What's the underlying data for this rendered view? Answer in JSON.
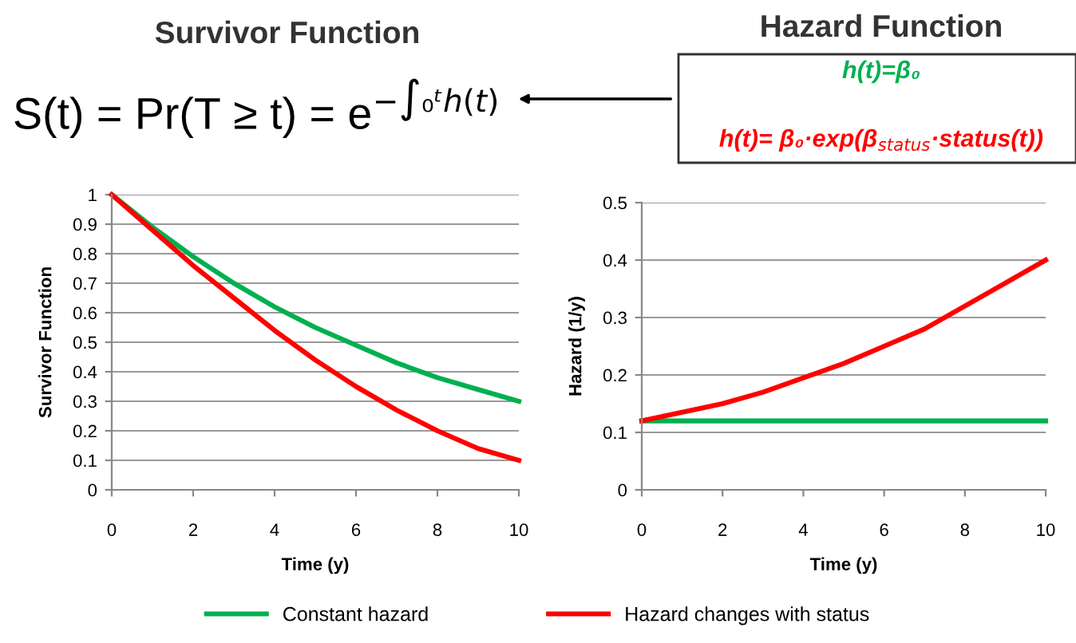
{
  "chart_data": [
    {
      "type": "line",
      "title": "Survivor Function",
      "xlabel": "Time (y)",
      "ylabel": "Survivor Function",
      "x": [
        0,
        1,
        2,
        3,
        4,
        5,
        6,
        7,
        8,
        9,
        10
      ],
      "series": [
        {
          "name": "Constant hazard",
          "color": "#00b050",
          "values": [
            1,
            0.89,
            0.79,
            0.7,
            0.62,
            0.55,
            0.49,
            0.43,
            0.38,
            0.34,
            0.3
          ]
        },
        {
          "name": "Hazard changes with status",
          "color": "#ff0000",
          "values": [
            1,
            0.88,
            0.76,
            0.65,
            0.54,
            0.44,
            0.35,
            0.27,
            0.2,
            0.14,
            0.1
          ]
        }
      ],
      "xlim": [
        0,
        10
      ],
      "xticks": [
        0,
        2,
        4,
        6,
        8,
        10
      ],
      "ylim": [
        0,
        1
      ],
      "yticks": [
        0,
        0.1,
        0.2,
        0.3,
        0.4,
        0.5,
        0.6,
        0.7,
        0.8,
        0.9,
        1
      ],
      "grid": "y",
      "legend": "bottom",
      "marker": "none",
      "line_style": "solid",
      "annotations": [
        "S(t) = Pr(T ≥ t) = e$^{−∫₀ᵗh(t)}$"
      ]
    },
    {
      "type": "line",
      "title": "Hazard Function",
      "xlabel": "Time (y)",
      "ylabel": "Hazard (1/y)",
      "x": [
        0,
        1,
        2,
        3,
        4,
        5,
        6,
        7,
        8,
        9,
        10
      ],
      "series": [
        {
          "name": "Constant hazard",
          "color": "#00b050",
          "values": [
            0.12,
            0.12,
            0.12,
            0.12,
            0.12,
            0.12,
            0.12,
            0.12,
            0.12,
            0.12,
            0.12
          ]
        },
        {
          "name": "Hazard changes with status",
          "color": "#ff0000",
          "values": [
            0.12,
            0.135,
            0.15,
            0.17,
            0.195,
            0.22,
            0.25,
            0.28,
            0.32,
            0.36,
            0.4
          ]
        }
      ],
      "xlim": [
        0,
        10
      ],
      "xticks": [
        0,
        2,
        4,
        6,
        8,
        10
      ],
      "ylim": [
        0,
        0.5
      ],
      "yticks": [
        0,
        0.1,
        0.2,
        0.3,
        0.4,
        0.5
      ],
      "grid": "y",
      "legend": "bottom",
      "marker": "none",
      "line_style": "solid",
      "annotations": [
        "h(t)=β₀",
        "h(t)= β₀·exp(β$_{status}$·status(t))"
      ]
    }
  ]
}
